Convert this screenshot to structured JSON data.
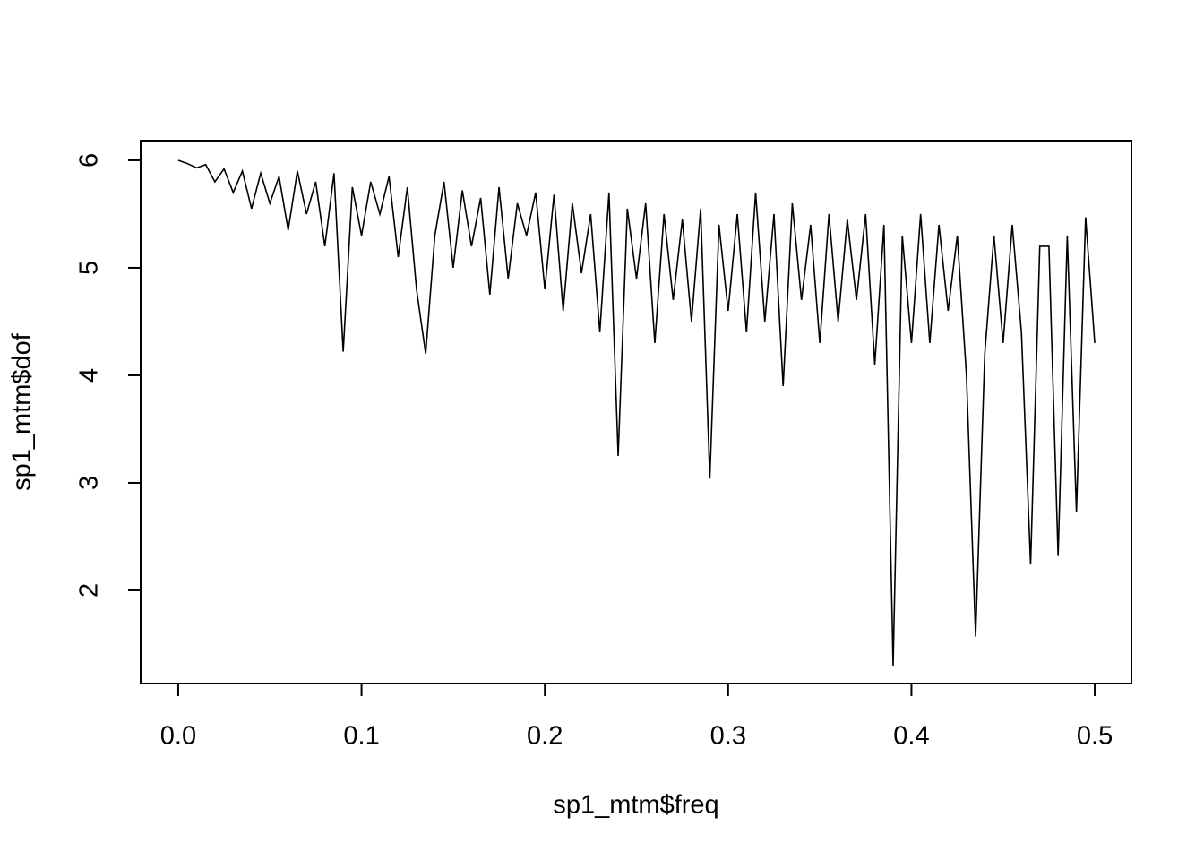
{
  "chart_data": {
    "type": "line",
    "xlabel": "sp1_mtm$freq",
    "ylabel": "sp1_mtm$dof",
    "color": "#000000",
    "x": [
      0,
      0.005,
      0.01,
      0.015,
      0.02,
      0.025,
      0.03,
      0.035,
      0.04,
      0.045,
      0.05,
      0.055,
      0.06,
      0.065,
      0.07,
      0.075,
      0.08,
      0.085,
      0.09,
      0.095,
      0.1,
      0.105,
      0.11,
      0.115,
      0.12,
      0.125,
      0.13,
      0.135,
      0.14,
      0.145,
      0.15,
      0.155,
      0.16,
      0.165,
      0.17,
      0.175,
      0.18,
      0.185,
      0.19,
      0.195,
      0.2,
      0.205,
      0.21,
      0.215,
      0.22,
      0.225,
      0.23,
      0.235,
      0.24,
      0.245,
      0.25,
      0.255,
      0.26,
      0.265,
      0.27,
      0.275,
      0.28,
      0.285,
      0.29,
      0.295,
      0.3,
      0.305,
      0.31,
      0.315,
      0.32,
      0.325,
      0.33,
      0.335,
      0.34,
      0.345,
      0.35,
      0.355,
      0.36,
      0.365,
      0.37,
      0.375,
      0.38,
      0.385,
      0.39,
      0.395,
      0.4,
      0.405,
      0.41,
      0.415,
      0.42,
      0.425,
      0.43,
      0.435,
      0.44,
      0.445,
      0.45,
      0.455,
      0.46,
      0.465,
      0.47,
      0.475,
      0.48,
      0.485,
      0.49,
      0.495,
      0.5
    ],
    "values": [
      6.0,
      5.97,
      5.93,
      5.96,
      5.8,
      5.92,
      5.7,
      5.9,
      5.55,
      5.88,
      5.6,
      5.85,
      5.35,
      5.9,
      5.5,
      5.8,
      5.2,
      5.88,
      4.22,
      5.75,
      5.3,
      5.8,
      5.5,
      5.85,
      5.1,
      5.75,
      4.8,
      4.2,
      5.3,
      5.8,
      5.0,
      5.72,
      5.2,
      5.65,
      4.75,
      5.75,
      4.9,
      5.6,
      5.3,
      5.7,
      4.8,
      5.68,
      4.6,
      5.6,
      4.95,
      5.5,
      4.4,
      5.7,
      3.25,
      5.55,
      4.9,
      5.6,
      4.3,
      5.5,
      4.7,
      5.45,
      4.5,
      5.55,
      3.04,
      5.4,
      4.6,
      5.5,
      4.4,
      5.7,
      4.5,
      5.5,
      3.9,
      5.6,
      4.7,
      5.4,
      4.3,
      5.5,
      4.5,
      5.45,
      4.7,
      5.5,
      4.1,
      5.4,
      1.3,
      5.3,
      4.3,
      5.5,
      4.3,
      5.4,
      4.6,
      5.3,
      4.0,
      1.57,
      4.2,
      5.3,
      4.3,
      5.4,
      4.4,
      2.24,
      5.2,
      5.2,
      2.32,
      5.3,
      2.73,
      5.47,
      4.3
    ],
    "xlim": [
      -0.0205,
      0.52
    ],
    "ylim": [
      1.133,
      6.183
    ],
    "xticks": [
      {
        "value": 0,
        "label": "0.0"
      },
      0.1,
      0.2,
      0.3,
      0.4,
      0.5
    ],
    "yticks": [
      2,
      3,
      4,
      5,
      6
    ]
  }
}
